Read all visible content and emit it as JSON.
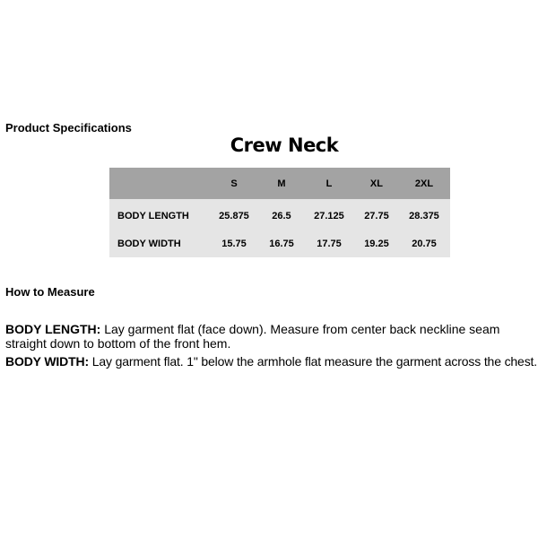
{
  "section_title": "Product Specifications",
  "table_title": "Crew Neck",
  "table": {
    "columns": [
      "",
      "S",
      "M",
      "L",
      "XL",
      "2XL"
    ],
    "rows": [
      {
        "label": "BODY LENGTH",
        "values": [
          "25.875",
          "26.5",
          "27.125",
          "27.75",
          "28.375"
        ]
      },
      {
        "label": "BODY WIDTH",
        "values": [
          "15.75",
          "16.75",
          "17.75",
          "19.25",
          "20.75"
        ]
      }
    ]
  },
  "colors": {
    "header_bg": "#a3a3a3",
    "body_bg": "#e5e5e5"
  },
  "how_to_measure": {
    "title": "How to Measure",
    "items": [
      {
        "label": "BODY LENGTH:",
        "text": " Lay garment flat (face down). Measure from center back neckline seam straight down to bottom of the front hem."
      },
      {
        "label": "BODY WIDTH:",
        "text": " Lay garment flat. 1\" below the armhole flat measure the garment across the chest."
      }
    ]
  }
}
